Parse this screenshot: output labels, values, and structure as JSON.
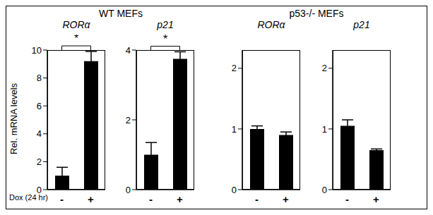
{
  "y_label": "Rel. mRNA levels",
  "x_label": "Dox (24 hr)",
  "chart_data": [
    {
      "type": "bar",
      "group": "WT MEFs",
      "title": "RORα",
      "categories": [
        "-",
        "+"
      ],
      "values": [
        1.0,
        9.2
      ],
      "errors": [
        0.6,
        0.7
      ],
      "color": "#000000",
      "ylim": [
        0,
        10
      ],
      "yticks": [
        0,
        2,
        4,
        6,
        8,
        10
      ],
      "significance": {
        "text": "*",
        "between": [
          "-",
          "+"
        ]
      }
    },
    {
      "type": "bar",
      "group": "WT MEFs",
      "title": "p21",
      "categories": [
        "-",
        "+"
      ],
      "values": [
        1.0,
        3.75
      ],
      "errors": [
        0.35,
        0.2
      ],
      "color": "#000000",
      "ylim": [
        0,
        4
      ],
      "yticks": [
        0,
        2,
        4
      ],
      "significance": {
        "text": "*",
        "between": [
          "-",
          "+"
        ]
      }
    },
    {
      "type": "bar",
      "group": "p53-/- MEFs",
      "title": "RORα",
      "categories": [
        "-",
        "+"
      ],
      "values": [
        1.0,
        0.9
      ],
      "errors": [
        0.05,
        0.05
      ],
      "color": "#000000",
      "ylim": [
        0,
        2.3
      ],
      "yticks": [
        0,
        1,
        2
      ]
    },
    {
      "type": "bar",
      "group": "p53-/- MEFs",
      "title": "p21",
      "categories": [
        "-",
        "+"
      ],
      "values": [
        1.05,
        0.65
      ],
      "errors": [
        0.1,
        0.02
      ],
      "color": "#000000",
      "ylim": [
        0,
        2.3
      ],
      "yticks": [
        0,
        1,
        2
      ]
    }
  ]
}
